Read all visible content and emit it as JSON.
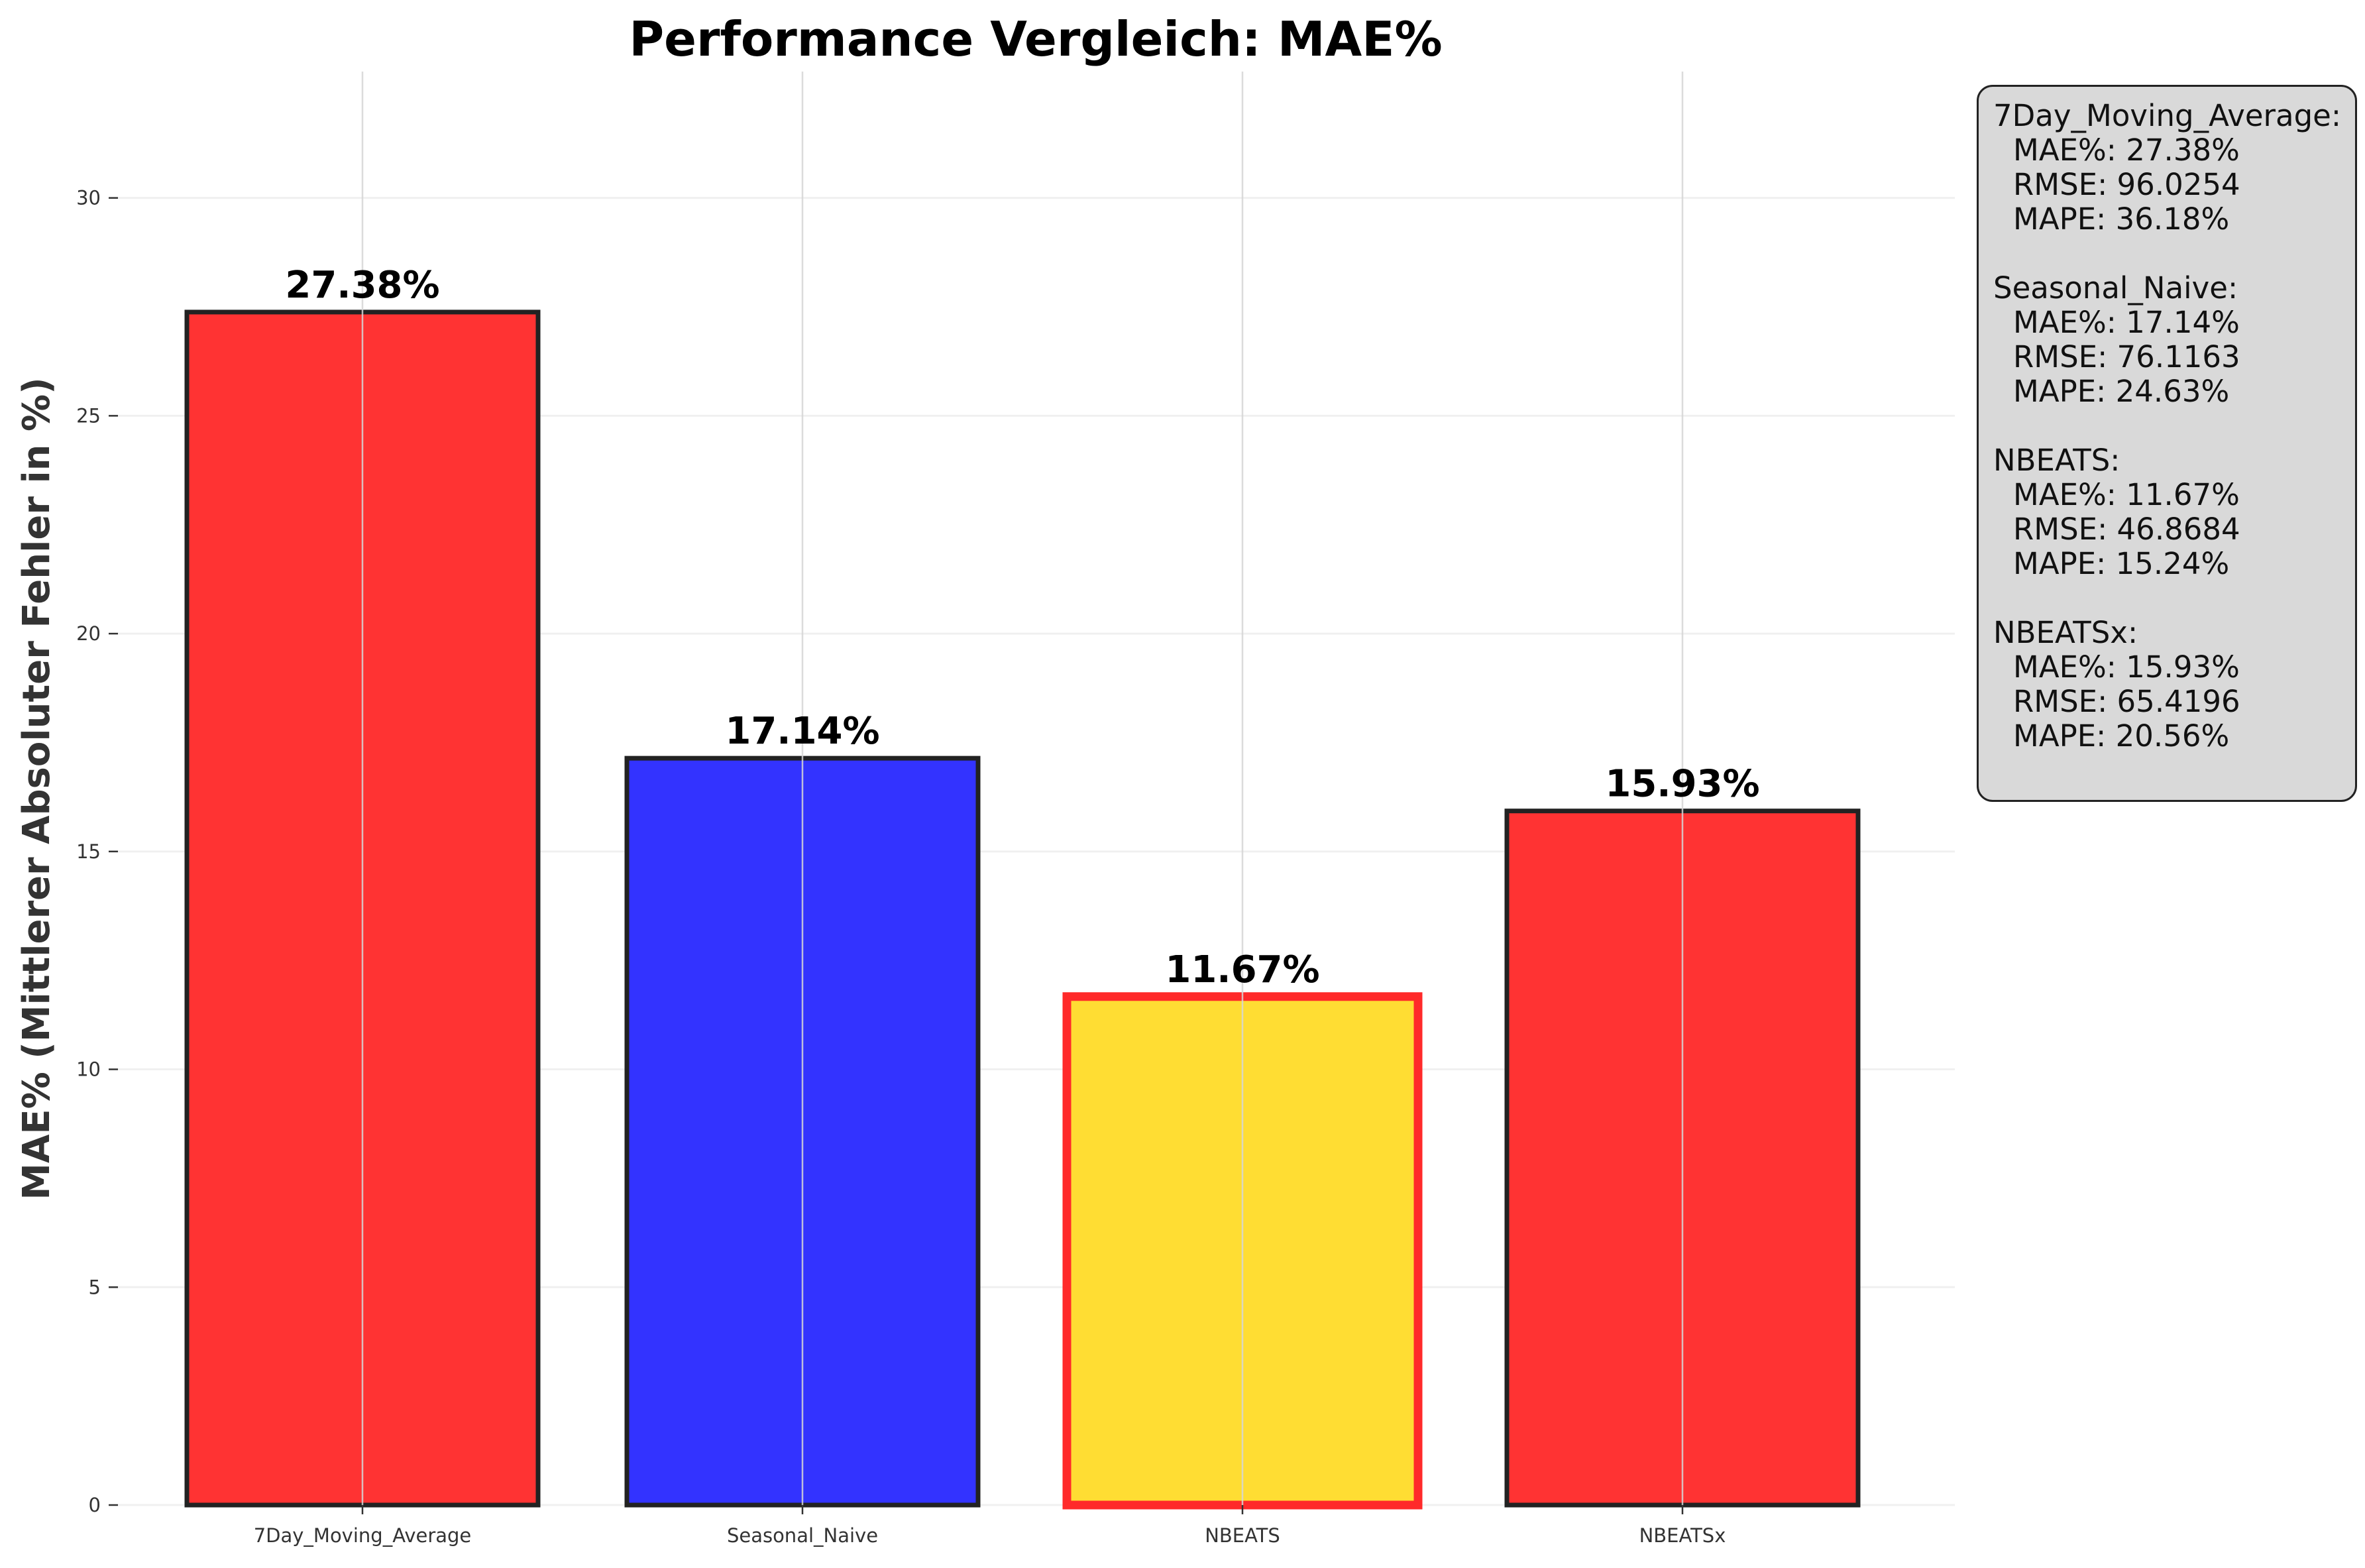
{
  "chart_data": {
    "type": "bar",
    "title": "Performance Vergleich: MAE%",
    "xlabel": "",
    "ylabel": "MAE% (Mittlerer Absoluter Fehler in %)",
    "categories": [
      "7Day_Moving_Average",
      "Seasonal_Naive",
      "NBEATS",
      "NBEATSx"
    ],
    "values": [
      27.38,
      17.14,
      11.67,
      15.93
    ],
    "value_labels": [
      "27.38%",
      "17.14%",
      "11.67%",
      "15.93%"
    ],
    "bar_colors": [
      "#ff3333",
      "#3333ff",
      "#ffdd33",
      "#ff3333"
    ],
    "bar_edge_colors": [
      "#222222",
      "#222222",
      "#ff2a2a",
      "#222222"
    ],
    "highlighted_category": "NBEATS",
    "ylim": [
      0,
      32.9
    ],
    "yticks": [
      0,
      5,
      10,
      15,
      20,
      25,
      30
    ],
    "grid": true,
    "legend": "none"
  },
  "metrics_box": {
    "placement": "right",
    "models": [
      {
        "name": "7Day_Moving_Average:",
        "mae": "MAE%: 27.38%",
        "rmse": "RMSE: 96.0254",
        "mape": "MAPE: 36.18%"
      },
      {
        "name": "Seasonal_Naive:",
        "mae": "MAE%: 17.14%",
        "rmse": "RMSE: 76.1163",
        "mape": "MAPE: 24.63%"
      },
      {
        "name": "NBEATS:",
        "mae": "MAE%: 11.67%",
        "rmse": "RMSE: 46.8684",
        "mape": "MAPE: 15.24%"
      },
      {
        "name": "NBEATSx:",
        "mae": "MAE%: 15.93%",
        "rmse": "RMSE: 65.4196",
        "mape": "MAPE: 20.56%"
      }
    ]
  }
}
